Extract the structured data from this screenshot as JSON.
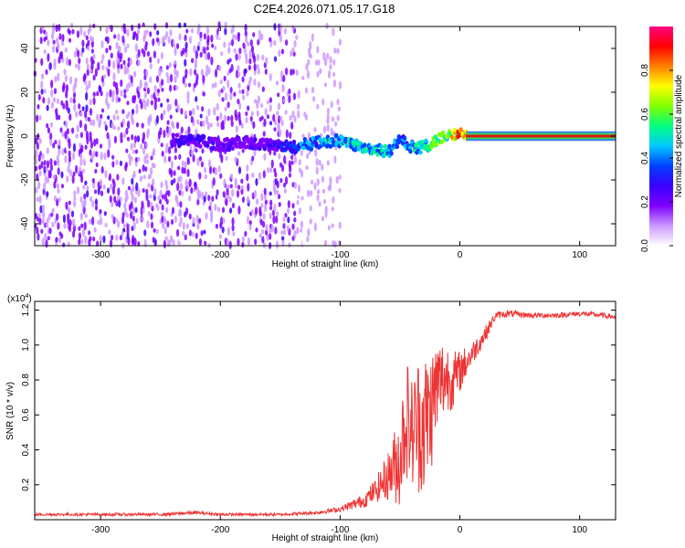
{
  "title": "C2E4.2026.071.05.17.G18",
  "chart_data": [
    {
      "type": "heatmap",
      "xlabel": "Height of straight line (km)",
      "ylabel": "Frequency (Hz)",
      "xlim": [
        -355,
        130
      ],
      "ylim": [
        -50,
        50
      ],
      "xticks": [
        -300,
        -200,
        -100,
        0,
        100
      ],
      "yticks": [
        -40,
        -20,
        0,
        20,
        40
      ],
      "colorbar": {
        "label": "Normalized spectral amplitude",
        "range": [
          0,
          1
        ],
        "ticks": [
          "0.0",
          "0.2",
          "0.4",
          "0.6",
          "0.8"
        ],
        "colors": [
          "#ffffff",
          "#cc99ff",
          "#7f00ff",
          "#3a00ff",
          "#0040ff",
          "#00c8ff",
          "#00ff80",
          "#7fff00",
          "#ffff00",
          "#ff8000",
          "#ff0000",
          "#ff0080"
        ]
      },
      "trace": {
        "x": [
          -240,
          -220,
          -200,
          -180,
          -160,
          -140,
          -120,
          -100,
          -80,
          -60,
          -50,
          -40,
          -30,
          -20,
          -10,
          0,
          20,
          60,
          100,
          130
        ],
        "frequency": [
          -2,
          -2,
          -4,
          -3,
          -4,
          -5,
          -3,
          -2,
          -5,
          -7,
          -2,
          -5,
          -5,
          -2,
          0,
          1,
          0,
          0,
          0,
          0
        ],
        "amplitude": [
          0.25,
          0.3,
          0.25,
          0.25,
          0.25,
          0.4,
          0.5,
          0.55,
          0.55,
          0.55,
          0.4,
          0.5,
          0.6,
          0.7,
          0.8,
          0.95,
          1.0,
          1.0,
          1.0,
          1.0
        ]
      },
      "noise_region": {
        "x": [
          -355,
          -100
        ],
        "frequency": [
          -50,
          50
        ]
      }
    },
    {
      "type": "line",
      "xlabel": "Height of straight line (km)",
      "ylabel": "SNR (10 * v/v)",
      "scale_label": "(x10",
      "scale_exponent": "4",
      "series": [
        {
          "color": "#ee3333",
          "x": [
            -355,
            -300,
            -250,
            -220,
            -200,
            -150,
            -120,
            -100,
            -80,
            -70,
            -60,
            -50,
            -45,
            -40,
            -35,
            -30,
            -25,
            -20,
            -15,
            -10,
            -5,
            0,
            10,
            20,
            30,
            40,
            60,
            80,
            100,
            120,
            130
          ],
          "values": [
            0.03,
            0.03,
            0.03,
            0.04,
            0.03,
            0.03,
            0.04,
            0.06,
            0.11,
            0.17,
            0.25,
            0.35,
            0.6,
            0.5,
            0.55,
            0.55,
            0.6,
            0.75,
            0.8,
            0.82,
            0.8,
            0.85,
            0.95,
            1.05,
            1.17,
            1.18,
            1.17,
            1.17,
            1.18,
            1.17,
            1.16
          ],
          "spread": [
            0.008,
            0.008,
            0.008,
            0.01,
            0.008,
            0.008,
            0.01,
            0.015,
            0.04,
            0.07,
            0.14,
            0.28,
            0.36,
            0.32,
            0.4,
            0.42,
            0.38,
            0.3,
            0.25,
            0.2,
            0.17,
            0.12,
            0.07,
            0.05,
            0.02,
            0.02,
            0.015,
            0.015,
            0.015,
            0.015,
            0.015
          ]
        }
      ],
      "xlim": [
        -355,
        130
      ],
      "ylim": [
        0,
        1.25
      ],
      "xticks": [
        -300,
        -200,
        -100,
        0,
        100
      ],
      "yticks": [
        0.2,
        0.4,
        0.6,
        0.8,
        1.0,
        1.2
      ]
    }
  ]
}
